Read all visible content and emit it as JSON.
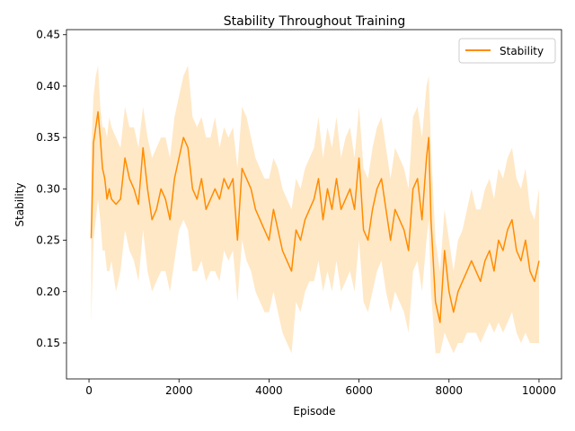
{
  "chart_data": {
    "type": "line",
    "title": "Stability Throughout Training",
    "xlabel": "Episode",
    "ylabel": "Stability",
    "xlim": [
      -500,
      10500
    ],
    "ylim": [
      0.115,
      0.455
    ],
    "x_ticks": [
      0,
      2000,
      4000,
      6000,
      8000,
      10000
    ],
    "x_tick_labels": [
      "0",
      "2000",
      "4000",
      "6000",
      "8000",
      "10000"
    ],
    "y_ticks": [
      0.15,
      0.2,
      0.25,
      0.3,
      0.35,
      0.4,
      0.45
    ],
    "y_tick_labels": [
      "0.15",
      "0.20",
      "0.25",
      "0.30",
      "0.35",
      "0.40",
      "0.45"
    ],
    "grid": false,
    "legend": {
      "placement": "top-right",
      "entries": [
        "Stability"
      ]
    },
    "colors": {
      "line": "#ff8c00",
      "band": "#ffe0b3"
    },
    "series": [
      {
        "name": "Stability",
        "x": [
          50,
          100,
          150,
          200,
          250,
          300,
          350,
          400,
          450,
          500,
          600,
          700,
          800,
          900,
          1000,
          1100,
          1200,
          1300,
          1400,
          1500,
          1600,
          1700,
          1800,
          1900,
          2000,
          2100,
          2200,
          2300,
          2400,
          2500,
          2600,
          2700,
          2800,
          2900,
          3000,
          3100,
          3200,
          3300,
          3400,
          3500,
          3600,
          3700,
          3800,
          3900,
          4000,
          4100,
          4200,
          4300,
          4400,
          4500,
          4600,
          4700,
          4800,
          4900,
          5000,
          5100,
          5200,
          5300,
          5400,
          5500,
          5600,
          5700,
          5800,
          5900,
          6000,
          6100,
          6200,
          6300,
          6400,
          6500,
          6600,
          6700,
          6800,
          6900,
          7000,
          7100,
          7200,
          7300,
          7400,
          7500,
          7550,
          7600,
          7700,
          7800,
          7900,
          8000,
          8100,
          8200,
          8300,
          8400,
          8500,
          8600,
          8700,
          8800,
          8900,
          9000,
          9100,
          9200,
          9300,
          9400,
          9500,
          9600,
          9700,
          9800,
          9900,
          10000
        ],
        "mean": [
          0.252,
          0.345,
          0.36,
          0.375,
          0.35,
          0.32,
          0.31,
          0.29,
          0.3,
          0.29,
          0.285,
          0.29,
          0.33,
          0.31,
          0.3,
          0.285,
          0.34,
          0.3,
          0.27,
          0.28,
          0.3,
          0.29,
          0.27,
          0.31,
          0.33,
          0.35,
          0.34,
          0.3,
          0.29,
          0.31,
          0.28,
          0.29,
          0.3,
          0.29,
          0.31,
          0.3,
          0.31,
          0.25,
          0.32,
          0.31,
          0.3,
          0.28,
          0.27,
          0.26,
          0.25,
          0.28,
          0.26,
          0.24,
          0.23,
          0.22,
          0.26,
          0.25,
          0.27,
          0.28,
          0.29,
          0.31,
          0.27,
          0.3,
          0.28,
          0.31,
          0.28,
          0.29,
          0.3,
          0.28,
          0.33,
          0.26,
          0.25,
          0.28,
          0.3,
          0.31,
          0.28,
          0.25,
          0.28,
          0.27,
          0.26,
          0.24,
          0.3,
          0.31,
          0.27,
          0.33,
          0.35,
          0.27,
          0.19,
          0.17,
          0.24,
          0.2,
          0.18,
          0.2,
          0.21,
          0.22,
          0.23,
          0.22,
          0.21,
          0.23,
          0.24,
          0.22,
          0.25,
          0.24,
          0.26,
          0.27,
          0.24,
          0.23,
          0.25,
          0.22,
          0.21,
          0.23
        ],
        "lower": [
          0.17,
          0.25,
          0.27,
          0.29,
          0.27,
          0.24,
          0.24,
          0.22,
          0.22,
          0.23,
          0.2,
          0.22,
          0.26,
          0.24,
          0.23,
          0.21,
          0.26,
          0.22,
          0.2,
          0.21,
          0.22,
          0.22,
          0.2,
          0.23,
          0.26,
          0.27,
          0.26,
          0.22,
          0.22,
          0.23,
          0.21,
          0.22,
          0.22,
          0.21,
          0.24,
          0.23,
          0.24,
          0.19,
          0.25,
          0.23,
          0.22,
          0.2,
          0.19,
          0.18,
          0.18,
          0.2,
          0.18,
          0.16,
          0.15,
          0.14,
          0.19,
          0.18,
          0.2,
          0.21,
          0.21,
          0.23,
          0.2,
          0.22,
          0.2,
          0.23,
          0.2,
          0.21,
          0.22,
          0.2,
          0.25,
          0.19,
          0.18,
          0.2,
          0.22,
          0.23,
          0.2,
          0.18,
          0.2,
          0.19,
          0.18,
          0.16,
          0.22,
          0.23,
          0.2,
          0.25,
          0.27,
          0.2,
          0.14,
          0.14,
          0.16,
          0.15,
          0.14,
          0.15,
          0.15,
          0.16,
          0.16,
          0.16,
          0.15,
          0.16,
          0.17,
          0.16,
          0.17,
          0.16,
          0.17,
          0.18,
          0.16,
          0.15,
          0.16,
          0.15,
          0.15,
          0.15
        ],
        "upper": [
          0.34,
          0.39,
          0.41,
          0.42,
          0.38,
          0.36,
          0.36,
          0.35,
          0.37,
          0.36,
          0.35,
          0.34,
          0.38,
          0.36,
          0.36,
          0.34,
          0.38,
          0.35,
          0.33,
          0.34,
          0.35,
          0.35,
          0.33,
          0.37,
          0.39,
          0.41,
          0.42,
          0.37,
          0.36,
          0.37,
          0.35,
          0.35,
          0.37,
          0.34,
          0.36,
          0.35,
          0.36,
          0.32,
          0.38,
          0.37,
          0.35,
          0.33,
          0.32,
          0.31,
          0.31,
          0.33,
          0.32,
          0.3,
          0.29,
          0.28,
          0.31,
          0.3,
          0.32,
          0.33,
          0.34,
          0.37,
          0.33,
          0.36,
          0.34,
          0.37,
          0.33,
          0.35,
          0.36,
          0.33,
          0.38,
          0.32,
          0.31,
          0.34,
          0.36,
          0.37,
          0.34,
          0.31,
          0.34,
          0.33,
          0.32,
          0.3,
          0.37,
          0.38,
          0.35,
          0.4,
          0.41,
          0.34,
          0.25,
          0.22,
          0.28,
          0.25,
          0.22,
          0.25,
          0.26,
          0.28,
          0.3,
          0.28,
          0.28,
          0.3,
          0.31,
          0.29,
          0.32,
          0.31,
          0.33,
          0.34,
          0.31,
          0.3,
          0.32,
          0.28,
          0.27,
          0.3
        ]
      }
    ]
  }
}
